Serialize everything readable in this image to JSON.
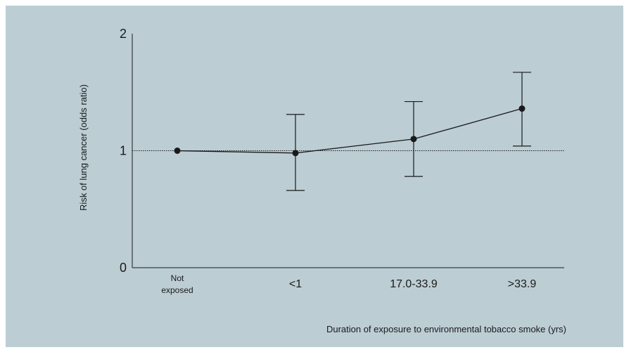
{
  "chart_data": {
    "type": "line",
    "xlabel": "Duration of exposure to environmental tobacco smoke (yrs)",
    "ylabel": "Risk of lung cancer (odds ratio)",
    "ylim": [
      0,
      2
    ],
    "yticks": [
      "0",
      "1",
      "2"
    ],
    "reference_line": 1,
    "categories": [
      "Not exposed",
      "<1",
      "17.0-33.9",
      ">33.9"
    ],
    "category_lines": [
      [
        "Not",
        "exposed"
      ],
      [
        "<1"
      ],
      [
        "17.0-33.9"
      ],
      [
        ">33.9"
      ]
    ],
    "values": [
      1.0,
      0.98,
      1.1,
      1.36
    ],
    "error_low": [
      null,
      0.66,
      0.78,
      1.04
    ],
    "error_high": [
      null,
      1.31,
      1.42,
      1.67
    ],
    "grid": false,
    "legend": "none",
    "colors": {
      "line": "#1a1a1a",
      "background": "#bccdd4"
    }
  }
}
